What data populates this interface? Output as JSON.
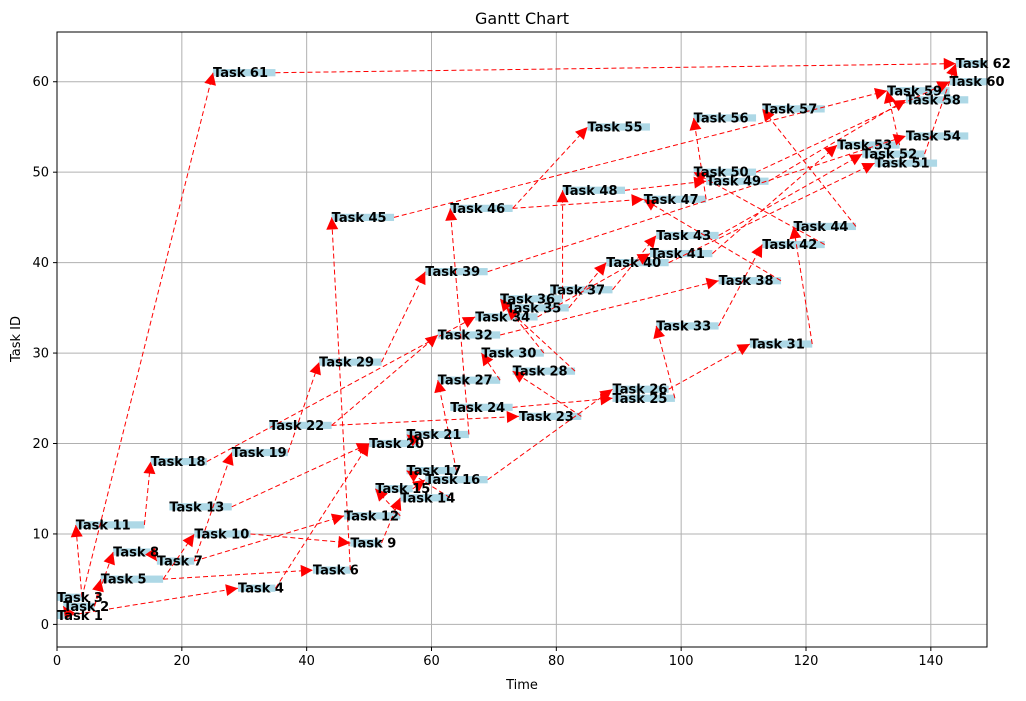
{
  "chart_data": {
    "type": "gantt",
    "title": "Gantt Chart",
    "xlabel": "Time",
    "ylabel": "Task ID",
    "xlim": [
      0,
      149
    ],
    "ylim": [
      -2.5,
      65.5
    ],
    "xticks": [
      0,
      20,
      40,
      60,
      80,
      100,
      120,
      140
    ],
    "yticks": [
      0,
      10,
      20,
      30,
      40,
      50,
      60
    ],
    "grid": true,
    "tasks": [
      {
        "id": 1,
        "name": "Task 1",
        "start": 0,
        "duration": 2
      },
      {
        "id": 2,
        "name": "Task 2",
        "start": 1,
        "duration": 5
      },
      {
        "id": 3,
        "name": "Task 3",
        "start": 0,
        "duration": 4
      },
      {
        "id": 4,
        "name": "Task 4",
        "start": 29,
        "duration": 6
      },
      {
        "id": 5,
        "name": "Task 5",
        "start": 7,
        "duration": 10
      },
      {
        "id": 6,
        "name": "Task 6",
        "start": 41,
        "duration": 6
      },
      {
        "id": 7,
        "name": "Task 7",
        "start": 16,
        "duration": 6
      },
      {
        "id": 8,
        "name": "Task 8",
        "start": 9,
        "duration": 6
      },
      {
        "id": 9,
        "name": "Task 9",
        "start": 47,
        "duration": 5
      },
      {
        "id": 10,
        "name": "Task 10",
        "start": 22,
        "duration": 9
      },
      {
        "id": 11,
        "name": "Task 11",
        "start": 3,
        "duration": 11
      },
      {
        "id": 12,
        "name": "Task 12",
        "start": 46,
        "duration": 9
      },
      {
        "id": 13,
        "name": "Task 13",
        "start": 18,
        "duration": 10
      },
      {
        "id": 14,
        "name": "Task 14",
        "start": 55,
        "duration": 8
      },
      {
        "id": 15,
        "name": "Task 15",
        "start": 51,
        "duration": 6
      },
      {
        "id": 16,
        "name": "Task 16",
        "start": 59,
        "duration": 10
      },
      {
        "id": 17,
        "name": "Task 17",
        "start": 56,
        "duration": 8
      },
      {
        "id": 18,
        "name": "Task 18",
        "start": 15,
        "duration": 9
      },
      {
        "id": 19,
        "name": "Task 19",
        "start": 28,
        "duration": 9
      },
      {
        "id": 20,
        "name": "Task 20",
        "start": 50,
        "duration": 8
      },
      {
        "id": 21,
        "name": "Task 21",
        "start": 56,
        "duration": 10
      },
      {
        "id": 22,
        "name": "Task 22",
        "start": 34,
        "duration": 10
      },
      {
        "id": 23,
        "name": "Task 23",
        "start": 74,
        "duration": 10
      },
      {
        "id": 24,
        "name": "Task 24",
        "start": 63,
        "duration": 10
      },
      {
        "id": 25,
        "name": "Task 25",
        "start": 89,
        "duration": 10
      },
      {
        "id": 26,
        "name": "Task 26",
        "start": 89,
        "duration": 9
      },
      {
        "id": 27,
        "name": "Task 27",
        "start": 61,
        "duration": 10
      },
      {
        "id": 28,
        "name": "Task 28",
        "start": 73,
        "duration": 10
      },
      {
        "id": 29,
        "name": "Task 29",
        "start": 42,
        "duration": 10
      },
      {
        "id": 30,
        "name": "Task 30",
        "start": 68,
        "duration": 10
      },
      {
        "id": 31,
        "name": "Task 31",
        "start": 111,
        "duration": 10
      },
      {
        "id": 32,
        "name": "Task 32",
        "start": 61,
        "duration": 10
      },
      {
        "id": 33,
        "name": "Task 33",
        "start": 96,
        "duration": 10
      },
      {
        "id": 34,
        "name": "Task 34",
        "start": 67,
        "duration": 10
      },
      {
        "id": 35,
        "name": "Task 35",
        "start": 72,
        "duration": 10
      },
      {
        "id": 36,
        "name": "Task 36",
        "start": 71,
        "duration": 10
      },
      {
        "id": 37,
        "name": "Task 37",
        "start": 79,
        "duration": 10
      },
      {
        "id": 38,
        "name": "Task 38",
        "start": 106,
        "duration": 10
      },
      {
        "id": 39,
        "name": "Task 39",
        "start": 59,
        "duration": 10
      },
      {
        "id": 40,
        "name": "Task 40",
        "start": 88,
        "duration": 10
      },
      {
        "id": 41,
        "name": "Task 41",
        "start": 95,
        "duration": 10
      },
      {
        "id": 42,
        "name": "Task 42",
        "start": 113,
        "duration": 10
      },
      {
        "id": 43,
        "name": "Task 43",
        "start": 96,
        "duration": 10
      },
      {
        "id": 44,
        "name": "Task 44",
        "start": 118,
        "duration": 10
      },
      {
        "id": 45,
        "name": "Task 45",
        "start": 44,
        "duration": 10
      },
      {
        "id": 46,
        "name": "Task 46",
        "start": 63,
        "duration": 10
      },
      {
        "id": 47,
        "name": "Task 47",
        "start": 94,
        "duration": 10
      },
      {
        "id": 48,
        "name": "Task 48",
        "start": 81,
        "duration": 10
      },
      {
        "id": 49,
        "name": "Task 49",
        "start": 104,
        "duration": 10
      },
      {
        "id": 50,
        "name": "Task 50",
        "start": 102,
        "duration": 10
      },
      {
        "id": 51,
        "name": "Task 51",
        "start": 131,
        "duration": 10
      },
      {
        "id": 52,
        "name": "Task 52",
        "start": 129,
        "duration": 10
      },
      {
        "id": 53,
        "name": "Task 53",
        "start": 125,
        "duration": 10
      },
      {
        "id": 54,
        "name": "Task 54",
        "start": 136,
        "duration": 10
      },
      {
        "id": 55,
        "name": "Task 55",
        "start": 85,
        "duration": 10
      },
      {
        "id": 56,
        "name": "Task 56",
        "start": 102,
        "duration": 10
      },
      {
        "id": 57,
        "name": "Task 57",
        "start": 113,
        "duration": 10
      },
      {
        "id": 58,
        "name": "Task 58",
        "start": 136,
        "duration": 10
      },
      {
        "id": 59,
        "name": "Task 59",
        "start": 133,
        "duration": 10
      },
      {
        "id": 60,
        "name": "Task 60",
        "start": 143,
        "duration": 6
      },
      {
        "id": 61,
        "name": "Task 61",
        "start": 25,
        "duration": 10
      },
      {
        "id": 62,
        "name": "Task 62",
        "start": 144,
        "duration": 5
      }
    ],
    "dependencies": [
      [
        1,
        4
      ],
      [
        1,
        2
      ],
      [
        2,
        8
      ],
      [
        2,
        5
      ],
      [
        3,
        11
      ],
      [
        5,
        10
      ],
      [
        5,
        6
      ],
      [
        8,
        7
      ],
      [
        7,
        12
      ],
      [
        10,
        9
      ],
      [
        11,
        18
      ],
      [
        13,
        20
      ],
      [
        7,
        19
      ],
      [
        3,
        61
      ],
      [
        4,
        20
      ],
      [
        6,
        45
      ],
      [
        9,
        14
      ],
      [
        12,
        15
      ],
      [
        14,
        17
      ],
      [
        15,
        16
      ],
      [
        19,
        29
      ],
      [
        18,
        34
      ],
      [
        22,
        32
      ],
      [
        20,
        21
      ],
      [
        21,
        46
      ],
      [
        22,
        23
      ],
      [
        24,
        25
      ],
      [
        16,
        26
      ],
      [
        17,
        27
      ],
      [
        23,
        28
      ],
      [
        26,
        31
      ],
      [
        27,
        30
      ],
      [
        25,
        33
      ],
      [
        28,
        35
      ],
      [
        30,
        36
      ],
      [
        32,
        38
      ],
      [
        33,
        42
      ],
      [
        35,
        40
      ],
      [
        34,
        41
      ],
      [
        36,
        48
      ],
      [
        37,
        43
      ],
      [
        31,
        44
      ],
      [
        38,
        47
      ],
      [
        41,
        53
      ],
      [
        40,
        51
      ],
      [
        43,
        52
      ],
      [
        42,
        50
      ],
      [
        39,
        54
      ],
      [
        45,
        59
      ],
      [
        46,
        47
      ],
      [
        46,
        55
      ],
      [
        47,
        56
      ],
      [
        44,
        57
      ],
      [
        49,
        58
      ],
      [
        50,
        60
      ],
      [
        52,
        62
      ],
      [
        61,
        62
      ],
      [
        29,
        39
      ],
      [
        48,
        49
      ],
      [
        53,
        59
      ]
    ]
  }
}
